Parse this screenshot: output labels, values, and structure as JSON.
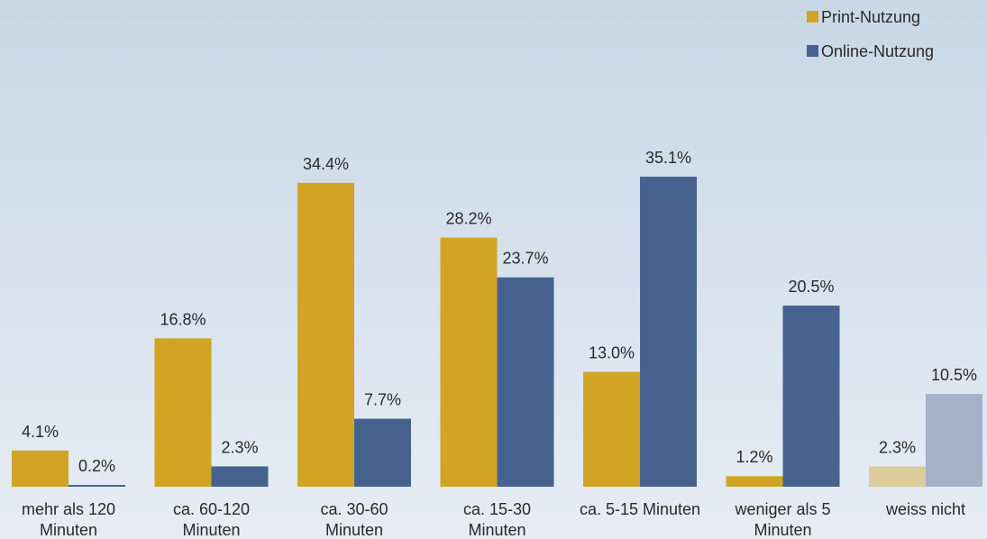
{
  "chart_data": {
    "type": "bar",
    "title": "",
    "xlabel": "",
    "ylabel": "",
    "ylim": [
      0,
      40
    ],
    "grid": false,
    "legend_position": "top-right",
    "value_suffix": "%",
    "categories": [
      [
        "mehr als 120",
        "Minuten"
      ],
      [
        "ca. 60-120",
        "Minuten"
      ],
      [
        "ca. 30-60",
        "Minuten"
      ],
      [
        "ca. 15-30",
        "Minuten"
      ],
      [
        "ca. 5-15 Minuten"
      ],
      [
        "weniger als 5",
        "Minuten"
      ],
      [
        "weiss nicht"
      ]
    ],
    "series": [
      {
        "name": "Print-Nutzung",
        "color": "#d1a523",
        "faded_color": "#dccc9c",
        "values": [
          4.1,
          16.8,
          34.4,
          28.2,
          13.0,
          1.2,
          2.3
        ]
      },
      {
        "name": "Online-Nutzung",
        "color": "#46638f",
        "faded_color": "#a3b2c9",
        "values": [
          0.2,
          2.3,
          7.7,
          23.7,
          35.1,
          20.5,
          10.5
        ]
      }
    ],
    "faded_categories": [
      6
    ]
  }
}
